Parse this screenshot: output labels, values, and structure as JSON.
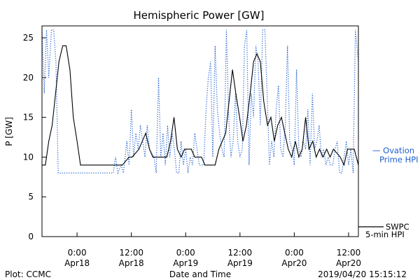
{
  "chart_data": {
    "type": "line",
    "title": "Hemispheric Power [GW]",
    "ylabel": "P [GW]",
    "xlabel": "Date and Time",
    "ylim": [
      0,
      26.5
    ],
    "xlim": [
      "2019-04-17T16:15",
      "2019-04-20T14:10"
    ],
    "y_ticks": [
      0,
      5,
      10,
      15,
      20,
      25
    ],
    "x_ticks": [
      {
        "time": "2019-04-18T00:00",
        "line1": "0:00",
        "line2": "Apr18"
      },
      {
        "time": "2019-04-18T12:00",
        "line1": "12:00",
        "line2": "Apr18"
      },
      {
        "time": "2019-04-19T00:00",
        "line1": "0:00",
        "line2": "Apr19"
      },
      {
        "time": "2019-04-19T12:00",
        "line1": "12:00",
        "line2": "Apr19"
      },
      {
        "time": "2019-04-20T00:00",
        "line1": "0:00",
        "line2": "Apr20"
      },
      {
        "time": "2019-04-20T12:00",
        "line1": "12:00",
        "line2": "Apr20"
      }
    ],
    "grid": false,
    "series": [
      {
        "name": "SWPC 5-min HPI",
        "label_line1": "SWPC",
        "label_line2": "5-min HPI",
        "color": "#000000",
        "style": "solid",
        "points": [
          [
            "2019-04-17T16:15",
            9
          ],
          [
            "2019-04-17T17:00",
            9
          ],
          [
            "2019-04-17T17:45",
            12
          ],
          [
            "2019-04-17T18:30",
            14
          ],
          [
            "2019-04-17T19:15",
            18
          ],
          [
            "2019-04-17T20:00",
            22
          ],
          [
            "2019-04-17T20:50",
            24
          ],
          [
            "2019-04-17T21:35",
            24
          ],
          [
            "2019-04-17T22:25",
            21
          ],
          [
            "2019-04-17T23:10",
            15
          ],
          [
            "2019-04-18T00:00",
            12
          ],
          [
            "2019-04-18T00:45",
            9
          ],
          [
            "2019-04-18T10:00",
            9
          ],
          [
            "2019-04-18T11:30",
            10
          ],
          [
            "2019-04-18T12:10",
            10
          ],
          [
            "2019-04-18T13:40",
            11
          ],
          [
            "2019-04-18T14:25",
            12
          ],
          [
            "2019-04-18T15:10",
            13
          ],
          [
            "2019-04-18T16:00",
            11
          ],
          [
            "2019-04-18T16:45",
            10
          ],
          [
            "2019-04-18T19:50",
            10
          ],
          [
            "2019-04-18T20:40",
            12
          ],
          [
            "2019-04-18T21:25",
            15
          ],
          [
            "2019-04-18T22:10",
            11
          ],
          [
            "2019-04-18T23:00",
            10
          ],
          [
            "2019-04-18T23:45",
            11
          ],
          [
            "2019-04-19T01:15",
            11
          ],
          [
            "2019-04-19T02:00",
            10
          ],
          [
            "2019-04-19T03:30",
            10
          ],
          [
            "2019-04-19T04:15",
            9
          ],
          [
            "2019-04-19T06:30",
            9
          ],
          [
            "2019-04-19T07:20",
            11
          ],
          [
            "2019-04-19T08:50",
            13
          ],
          [
            "2019-04-19T09:35",
            17
          ],
          [
            "2019-04-19T10:20",
            21
          ],
          [
            "2019-04-19T11:05",
            18
          ],
          [
            "2019-04-19T11:55",
            15
          ],
          [
            "2019-04-19T12:40",
            12
          ],
          [
            "2019-04-19T13:25",
            14
          ],
          [
            "2019-04-19T14:15",
            18
          ],
          [
            "2019-04-19T15:00",
            22
          ],
          [
            "2019-04-19T15:45",
            23
          ],
          [
            "2019-04-19T16:30",
            22
          ],
          [
            "2019-04-19T17:15",
            17
          ],
          [
            "2019-04-19T18:05",
            14
          ],
          [
            "2019-04-19T18:50",
            15
          ],
          [
            "2019-04-19T19:35",
            12
          ],
          [
            "2019-04-19T20:20",
            14
          ],
          [
            "2019-04-19T21:10",
            15
          ],
          [
            "2019-04-19T21:55",
            13
          ],
          [
            "2019-04-19T22:40",
            11
          ],
          [
            "2019-04-19T23:25",
            10
          ],
          [
            "2019-04-20T00:15",
            12
          ],
          [
            "2019-04-20T01:00",
            10
          ],
          [
            "2019-04-20T01:45",
            11
          ],
          [
            "2019-04-20T02:30",
            15
          ],
          [
            "2019-04-20T03:15",
            11
          ],
          [
            "2019-04-20T04:05",
            12
          ],
          [
            "2019-04-20T04:50",
            10
          ],
          [
            "2019-04-20T05:35",
            11
          ],
          [
            "2019-04-20T06:20",
            10
          ],
          [
            "2019-04-20T07:10",
            11
          ],
          [
            "2019-04-20T07:55",
            10
          ],
          [
            "2019-04-20T08:40",
            11
          ],
          [
            "2019-04-20T10:10",
            10
          ],
          [
            "2019-04-20T11:00",
            9
          ],
          [
            "2019-04-20T11:45",
            11
          ],
          [
            "2019-04-20T13:15",
            11
          ],
          [
            "2019-04-20T14:10",
            9
          ]
        ]
      },
      {
        "name": "Ovation Prime HPI",
        "label_line1": "— Ovation",
        "label_line2": "Prime HPI",
        "color": "#1f5fd0",
        "style": "dotted",
        "points": [
          [
            "2019-04-17T16:15",
            26
          ],
          [
            "2019-04-17T16:45",
            18
          ],
          [
            "2019-04-17T17:15",
            26
          ],
          [
            "2019-04-17T17:45",
            20
          ],
          [
            "2019-04-17T18:20",
            26
          ],
          [
            "2019-04-17T18:50",
            26
          ],
          [
            "2019-04-17T19:20",
            22
          ],
          [
            "2019-04-17T19:50",
            8
          ],
          [
            "2019-04-17T20:20",
            8
          ],
          [
            "2019-04-18T08:00",
            8
          ],
          [
            "2019-04-18T08:30",
            10
          ],
          [
            "2019-04-18T09:00",
            8
          ],
          [
            "2019-04-18T09:45",
            9
          ],
          [
            "2019-04-18T10:15",
            8
          ],
          [
            "2019-04-18T11:00",
            12
          ],
          [
            "2019-04-18T11:30",
            9
          ],
          [
            "2019-04-18T12:00",
            16
          ],
          [
            "2019-04-18T12:30",
            10
          ],
          [
            "2019-04-18T13:00",
            13
          ],
          [
            "2019-04-18T13:30",
            11
          ],
          [
            "2019-04-18T14:00",
            14
          ],
          [
            "2019-04-18T14:30",
            12
          ],
          [
            "2019-04-18T15:00",
            10
          ],
          [
            "2019-04-18T15:30",
            14
          ],
          [
            "2019-04-18T16:00",
            11
          ],
          [
            "2019-04-18T17:00",
            10
          ],
          [
            "2019-04-18T17:30",
            8
          ],
          [
            "2019-04-18T18:00",
            20
          ],
          [
            "2019-04-18T18:30",
            10
          ],
          [
            "2019-04-18T19:00",
            13
          ],
          [
            "2019-04-18T19:30",
            9
          ],
          [
            "2019-04-18T20:00",
            14
          ],
          [
            "2019-04-18T20:30",
            10
          ],
          [
            "2019-04-18T21:00",
            13
          ],
          [
            "2019-04-18T21:30",
            11
          ],
          [
            "2019-04-18T22:00",
            8
          ],
          [
            "2019-04-18T22:30",
            8
          ],
          [
            "2019-04-18T23:00",
            12
          ],
          [
            "2019-04-18T23:30",
            9
          ],
          [
            "2019-04-19T00:00",
            11
          ],
          [
            "2019-04-19T00:30",
            8
          ],
          [
            "2019-04-19T01:00",
            10
          ],
          [
            "2019-04-19T01:30",
            9
          ],
          [
            "2019-04-19T02:00",
            13
          ],
          [
            "2019-04-19T02:30",
            11
          ],
          [
            "2019-04-19T03:00",
            9
          ],
          [
            "2019-04-19T04:00",
            9
          ],
          [
            "2019-04-19T04:30",
            16
          ],
          [
            "2019-04-19T05:00",
            20
          ],
          [
            "2019-04-19T05:30",
            22
          ],
          [
            "2019-04-19T06:00",
            10
          ],
          [
            "2019-04-19T06:30",
            24
          ],
          [
            "2019-04-19T07:00",
            16
          ],
          [
            "2019-04-19T07:30",
            13
          ],
          [
            "2019-04-19T08:00",
            11
          ],
          [
            "2019-04-19T08:30",
            10
          ],
          [
            "2019-04-19T09:00",
            26
          ],
          [
            "2019-04-19T09:30",
            15
          ],
          [
            "2019-04-19T10:00",
            10
          ],
          [
            "2019-04-19T10:30",
            12
          ],
          [
            "2019-04-19T11:00",
            18
          ],
          [
            "2019-04-19T11:30",
            12
          ],
          [
            "2019-04-19T12:00",
            10
          ],
          [
            "2019-04-19T12:30",
            11
          ],
          [
            "2019-04-19T13:00",
            24
          ],
          [
            "2019-04-19T13:30",
            26
          ],
          [
            "2019-04-19T14:00",
            9
          ],
          [
            "2019-04-19T14:30",
            18
          ],
          [
            "2019-04-19T15:00",
            15
          ],
          [
            "2019-04-19T15:30",
            24
          ],
          [
            "2019-04-19T16:00",
            22
          ],
          [
            "2019-04-19T16:30",
            14
          ],
          [
            "2019-04-19T17:00",
            26
          ],
          [
            "2019-04-19T17:30",
            26
          ],
          [
            "2019-04-19T18:00",
            18
          ],
          [
            "2019-04-19T18:30",
            9
          ],
          [
            "2019-04-19T19:00",
            12
          ],
          [
            "2019-04-19T19:30",
            10
          ],
          [
            "2019-04-19T20:00",
            16
          ],
          [
            "2019-04-19T20:30",
            19
          ],
          [
            "2019-04-19T21:00",
            11
          ],
          [
            "2019-04-19T21:30",
            10
          ],
          [
            "2019-04-19T22:00",
            14
          ],
          [
            "2019-04-19T22:30",
            24
          ],
          [
            "2019-04-19T23:00",
            12
          ],
          [
            "2019-04-19T23:30",
            11
          ],
          [
            "2019-04-20T00:00",
            9
          ],
          [
            "2019-04-20T00:30",
            21
          ],
          [
            "2019-04-20T01:00",
            11
          ],
          [
            "2019-04-20T01:30",
            10
          ],
          [
            "2019-04-20T02:00",
            12
          ],
          [
            "2019-04-20T02:30",
            11
          ],
          [
            "2019-04-20T03:00",
            16
          ],
          [
            "2019-04-20T03:30",
            9
          ],
          [
            "2019-04-20T04:00",
            18
          ],
          [
            "2019-04-20T04:30",
            11
          ],
          [
            "2019-04-20T05:00",
            12
          ],
          [
            "2019-04-20T05:30",
            14
          ],
          [
            "2019-04-20T06:00",
            10
          ],
          [
            "2019-04-20T06:30",
            11
          ],
          [
            "2019-04-20T07:00",
            9
          ],
          [
            "2019-04-20T07:30",
            10
          ],
          [
            "2019-04-20T08:00",
            9
          ],
          [
            "2019-04-20T08:30",
            9
          ],
          [
            "2019-04-20T09:00",
            11
          ],
          [
            "2019-04-20T09:30",
            12
          ],
          [
            "2019-04-20T10:00",
            8
          ],
          [
            "2019-04-20T10:30",
            8
          ],
          [
            "2019-04-20T11:00",
            10
          ],
          [
            "2019-04-20T11:30",
            12
          ],
          [
            "2019-04-20T12:00",
            9
          ],
          [
            "2019-04-20T12:30",
            11
          ],
          [
            "2019-04-20T13:00",
            8
          ],
          [
            "2019-04-20T13:30",
            26
          ],
          [
            "2019-04-20T14:10",
            22
          ]
        ]
      }
    ]
  },
  "footer": {
    "plot_credit": "Plot: CCMC",
    "x_axis_title": "Date and Time",
    "timestamp": "2019/04/20 15:15:12"
  }
}
